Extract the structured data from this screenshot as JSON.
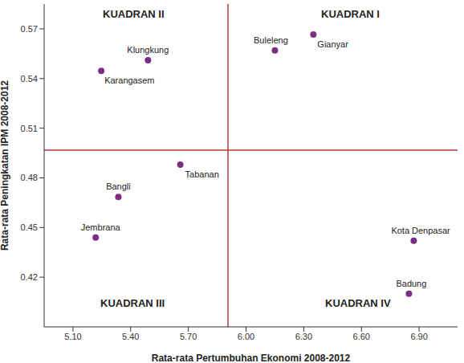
{
  "chart_data": {
    "type": "scatter",
    "x_label": "Rata-rata Pertumbuhan Ekonomi 2008-2012",
    "y_label": "Rata-rata Peningkatan IPM 2008-2012",
    "color": "#7b2d82",
    "xlim": [
      4.95,
      7.1
    ],
    "ylim": [
      0.39,
      0.585
    ],
    "xticks": [
      {
        "value": 5.1,
        "label": "5.10"
      },
      {
        "value": 5.4,
        "label": "5.40"
      },
      {
        "value": 5.7,
        "label": "5.70"
      },
      {
        "value": 6.0,
        "label": "6.00"
      },
      {
        "value": 6.3,
        "label": "6.30"
      },
      {
        "value": 6.6,
        "label": "6.60"
      },
      {
        "value": 6.9,
        "label": "6.90"
      }
    ],
    "yticks": [
      {
        "value": 0.42,
        "label": "0.42"
      },
      {
        "value": 0.45,
        "label": "0.45"
      },
      {
        "value": 0.48,
        "label": "0.48"
      },
      {
        "value": 0.51,
        "label": "0.51"
      },
      {
        "value": 0.54,
        "label": "0.54"
      },
      {
        "value": 0.57,
        "label": "0.57"
      }
    ],
    "points": [
      {
        "name": "Buleleng",
        "x": 6.15,
        "y": 0.557
      },
      {
        "name": "Gianyar",
        "x": 6.35,
        "y": 0.5666
      },
      {
        "name": "Klungkung",
        "x": 5.49,
        "y": 0.551
      },
      {
        "name": "Karangasem",
        "x": 5.247,
        "y": 0.5446
      },
      {
        "name": "Tabanan",
        "x": 5.658,
        "y": 0.488
      },
      {
        "name": "Bangli",
        "x": 5.336,
        "y": 0.4685
      },
      {
        "name": "Jembrana",
        "x": 5.218,
        "y": 0.444
      },
      {
        "name": "Kota Denpasar",
        "x": 6.872,
        "y": 0.442
      },
      {
        "name": "Badung",
        "x": 6.847,
        "y": 0.41
      }
    ],
    "reference_lines": {
      "x": 5.906,
      "y": 0.4967,
      "color": "#b03a3a"
    },
    "quadrant_labels": [
      "KUADRAN I",
      "KUADRAN II",
      "KUADRAN III",
      "KUADRAN IV"
    ]
  }
}
